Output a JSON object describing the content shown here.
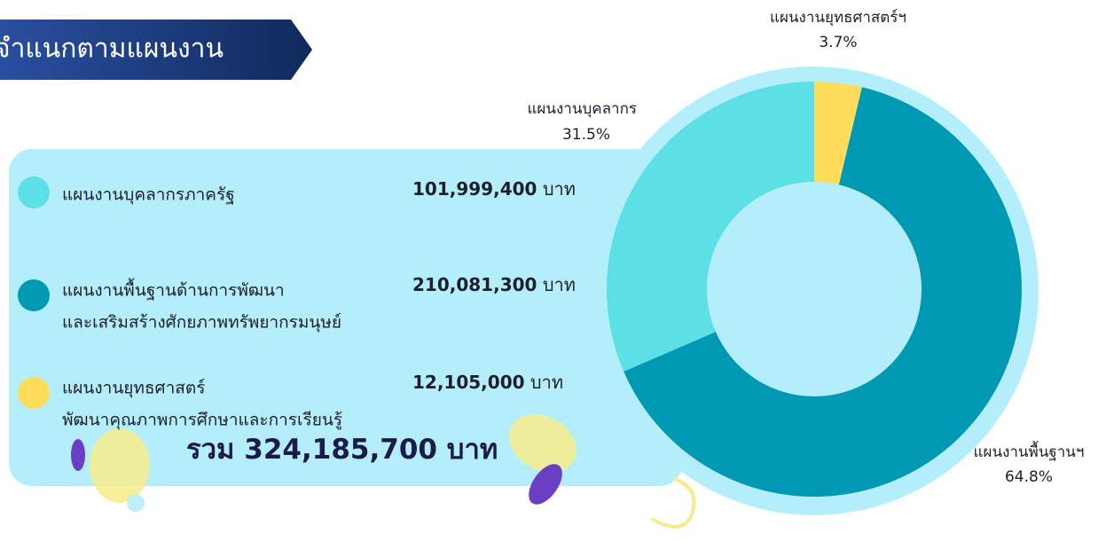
{
  "header": {
    "title": "จำแนกตามแผนงาน"
  },
  "legend": {
    "unit": "บาท",
    "items": [
      {
        "lines": [
          "แผนงานบุคลากรภาครัฐ"
        ],
        "amount": "101,999,400",
        "color": "#5ce0e6"
      },
      {
        "lines": [
          "แผนงานพื้นฐานด้านการพัฒนา",
          "และเสริมสร้างศักยภาพทรัพยากรมนุษย์"
        ],
        "amount": "210,081,300",
        "color": "#0099b4"
      },
      {
        "lines": [
          "แผนงานยุทธศาสตร์",
          "พัฒนาคุณภาพการศึกษาและการเรียนรู้"
        ],
        "amount": "12,105,000",
        "color": "#fddc5c"
      }
    ],
    "total": {
      "label": "รวม",
      "amount": "324,185,700"
    }
  },
  "chart_data": {
    "type": "pie",
    "categories": [
      "แผนงานยุทธศาสตร์ฯ",
      "แผนงานพื้นฐานฯ",
      "แผนงานบุคลากร"
    ],
    "values": [
      3.7,
      64.8,
      31.5
    ],
    "value_labels": [
      "3.7%",
      "64.8%",
      "31.5%"
    ],
    "colors": [
      "#fddc5c",
      "#0099b4",
      "#5ce0e6"
    ]
  }
}
